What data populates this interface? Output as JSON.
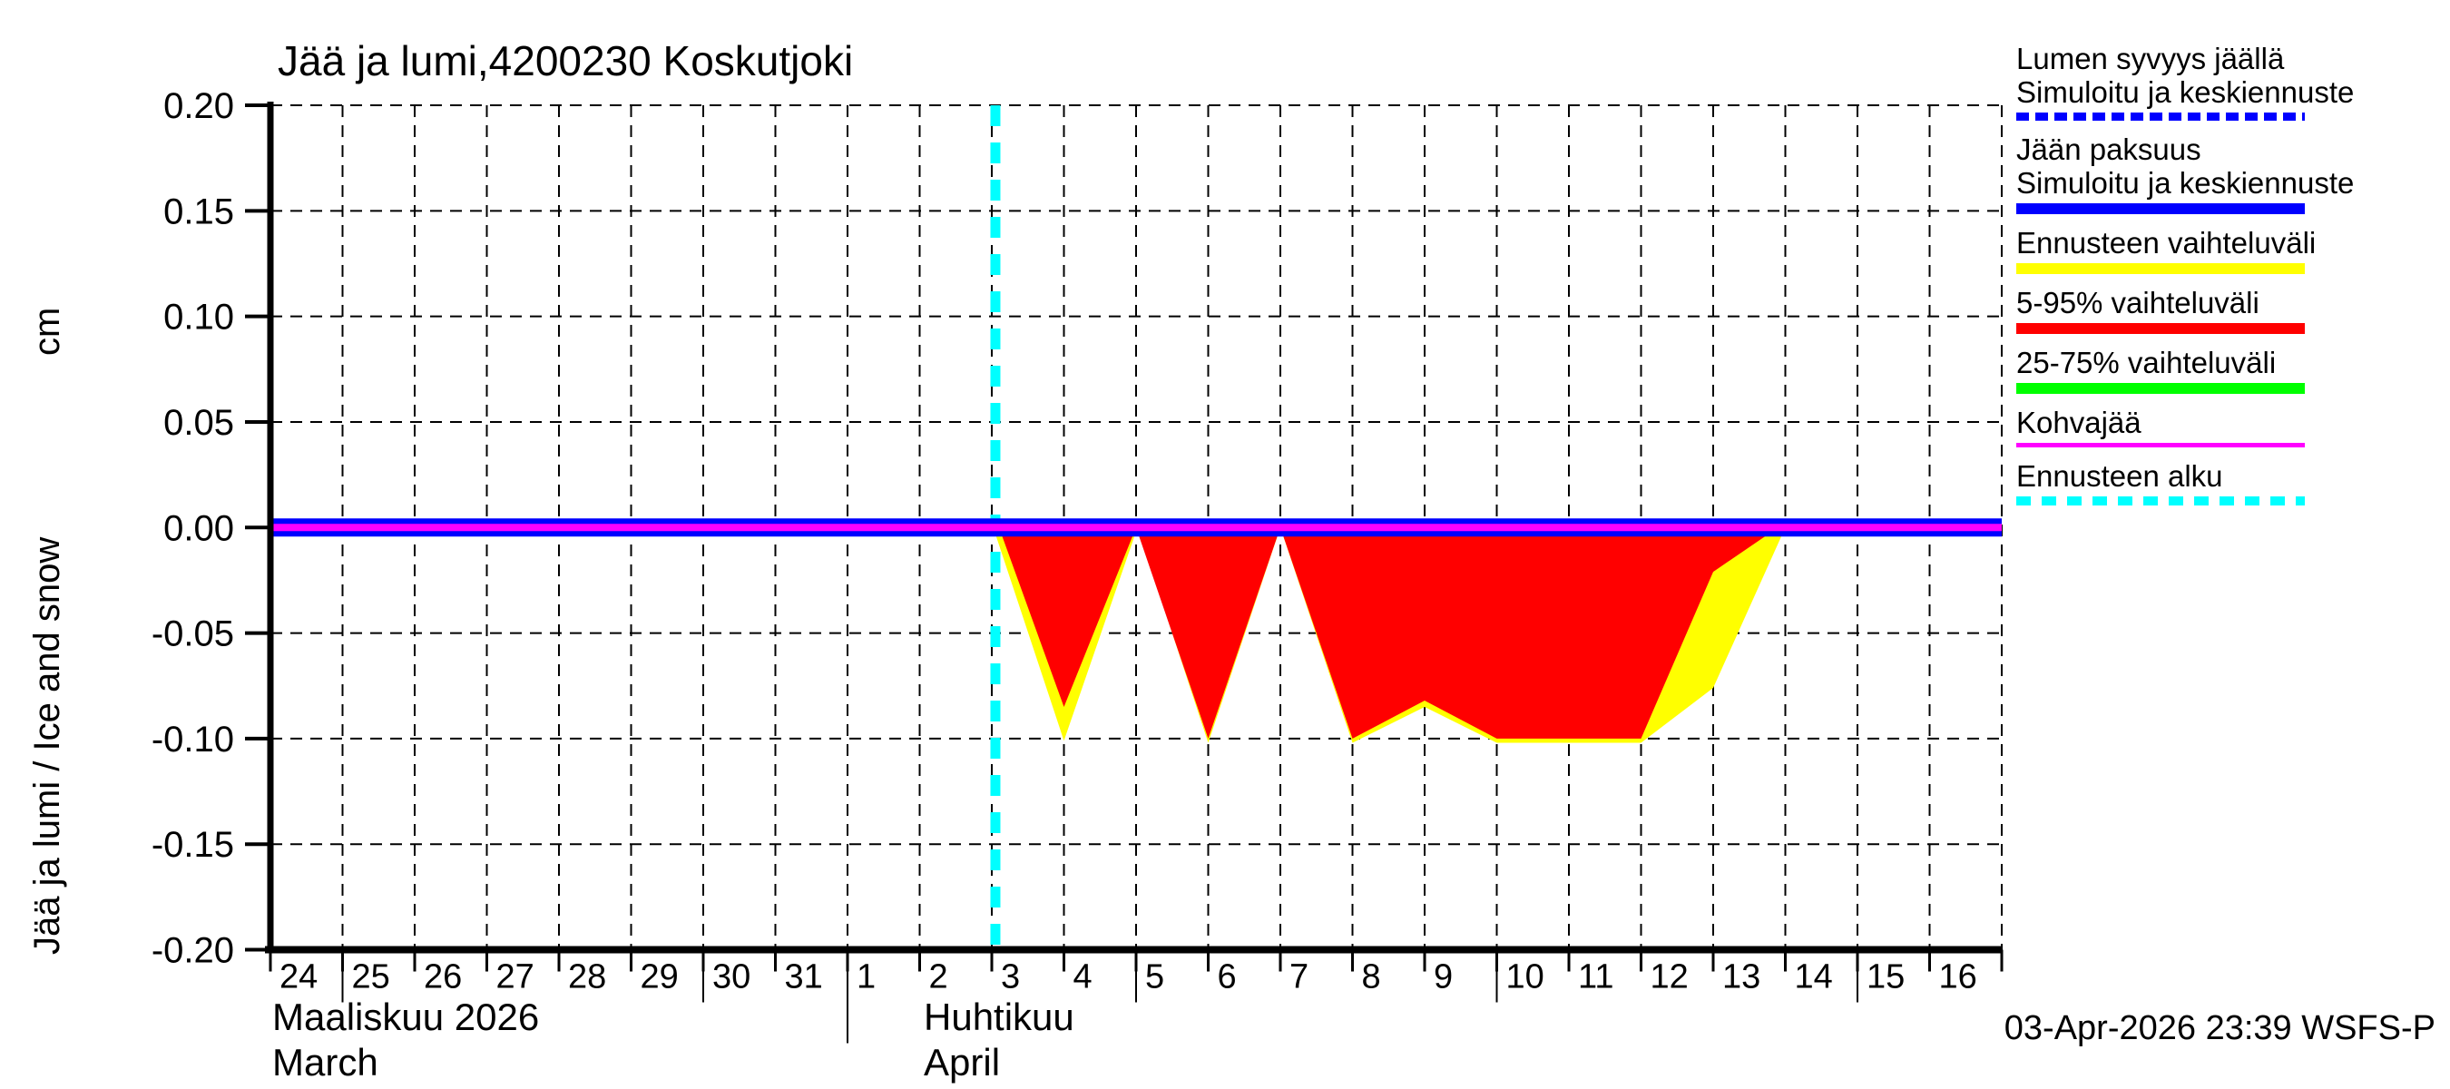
{
  "title": "Jää ja lumi,4200230 Koskutjoki",
  "timestamp": "03-Apr-2026 23:39 WSFS-P",
  "y_axis": {
    "label": "Jää ja lumi / Ice and snow",
    "unit": "cm",
    "tick_labels": [
      "0.20",
      "0.15",
      "0.10",
      "0.05",
      "0.00",
      "-0.05",
      "-0.10",
      "-0.15",
      "-0.20"
    ],
    "tick_values": [
      0.2,
      0.15,
      0.1,
      0.05,
      0.0,
      -0.05,
      -0.1,
      -0.15,
      -0.2
    ]
  },
  "x_axis": {
    "day_labels": [
      "24",
      "25",
      "26",
      "27",
      "28",
      "29",
      "30",
      "31",
      "1",
      "2",
      "3",
      "4",
      "5",
      "6",
      "7",
      "8",
      "9",
      "10",
      "11",
      "12",
      "13",
      "14",
      "15",
      "16"
    ],
    "long_tick_days": [
      1,
      6,
      12,
      17,
      22
    ],
    "month_boundary_day": 8,
    "total_days": 24,
    "months": {
      "march": {
        "fi": "Maaliskuu 2026",
        "en": "March"
      },
      "april": {
        "fi": "Huhtikuu",
        "en": "April"
      }
    }
  },
  "colors": {
    "red": "#FF0000",
    "yellow": "#FFFF00",
    "green": "#00FF00",
    "blue": "#0000FF",
    "magenta": "#FF00FF",
    "cyan": "#00FFFF",
    "axis": "#000000"
  },
  "legend": {
    "items": [
      {
        "lines": [
          "Lumen syvyys jäällä",
          "Simuloitu ja keskiennuste"
        ],
        "swatch": {
          "color": "#0000FF",
          "height": 9,
          "dash": [
            14,
            7
          ]
        }
      },
      {
        "lines": [
          "Jään paksuus",
          "Simuloitu ja keskiennuste"
        ],
        "swatch": {
          "color": "#0000FF",
          "height": 12,
          "dash": null
        }
      },
      {
        "lines": [
          "Ennusteen vaihteluväli"
        ],
        "swatch": {
          "color": "#FFFF00",
          "height": 12,
          "dash": null
        }
      },
      {
        "lines": [
          "5-95% vaihteluväli"
        ],
        "swatch": {
          "color": "#FF0000",
          "height": 12,
          "dash": null
        }
      },
      {
        "lines": [
          "25-75% vaihteluväli"
        ],
        "swatch": {
          "color": "#00FF00",
          "height": 12,
          "dash": null
        }
      },
      {
        "lines": [
          "Kohvajää"
        ],
        "swatch": {
          "color": "#FF00FF",
          "height": 5,
          "dash": null
        }
      },
      {
        "lines": [
          "Ennusteen alku"
        ],
        "swatch": {
          "color": "#00FFFF",
          "height": 10,
          "dash": [
            16,
            12
          ]
        }
      }
    ]
  },
  "chart_data": {
    "type": "area",
    "title": "Jää ja lumi,4200230 Koskutjoki",
    "xlabel_fi": "Huhtikuu",
    "ylabel": "Jää ja lumi / Ice and snow (cm)",
    "x_range": [
      "2026-03-24",
      "2026-04-17"
    ],
    "ylim": [
      -0.2,
      0.2
    ],
    "grid": true,
    "forecast_start_day": 10.05,
    "forecast_start_date": "2026-04-03",
    "note": "x in days since 2026-03-24; all simulated lines lie at 0.00",
    "series": [
      {
        "name": "Lumen syvyys jäällä — Simuloitu ja keskiennuste",
        "color": "#0000FF",
        "style": "dashed",
        "width": 9,
        "points": [
          [
            0,
            0
          ],
          [
            24,
            0
          ]
        ]
      },
      {
        "name": "Jään paksuus — Simuloitu ja keskiennuste",
        "color": "#0000FF",
        "style": "solid",
        "width": 20,
        "points": [
          [
            0,
            0
          ],
          [
            24,
            0
          ]
        ]
      },
      {
        "name": "Kohvajää",
        "color": "#FF00FF",
        "style": "solid",
        "width": 8,
        "points": [
          [
            0,
            0
          ],
          [
            24,
            0
          ]
        ]
      }
    ],
    "bands": [
      {
        "name": "Ennusteen vaihteluväli",
        "color": "#FFFF00",
        "upper": 0,
        "lower": [
          [
            10.02,
            0
          ],
          [
            11,
            -0.101
          ],
          [
            12.02,
            0
          ],
          [
            13,
            -0.102
          ],
          [
            14,
            0
          ],
          [
            15,
            -0.102
          ],
          [
            16,
            -0.085
          ],
          [
            17,
            -0.102
          ],
          [
            19,
            -0.102
          ],
          [
            20,
            -0.076
          ],
          [
            21,
            0
          ]
        ]
      },
      {
        "name": "5-95% vaihteluväli",
        "color": "#FF0000",
        "upper": 0,
        "lower": [
          [
            10.1,
            0
          ],
          [
            11,
            -0.085
          ],
          [
            12,
            0
          ],
          [
            13,
            -0.1
          ],
          [
            14,
            0
          ],
          [
            15,
            -0.1
          ],
          [
            16,
            -0.082
          ],
          [
            17,
            -0.1
          ],
          [
            19,
            -0.1
          ],
          [
            20,
            -0.021
          ],
          [
            20.9,
            0
          ]
        ]
      },
      {
        "name": "25-75% vaihteluväli",
        "color": "#00FF00",
        "upper": 0,
        "lower": [
          [
            10.05,
            0
          ],
          [
            21,
            0
          ]
        ]
      }
    ]
  }
}
